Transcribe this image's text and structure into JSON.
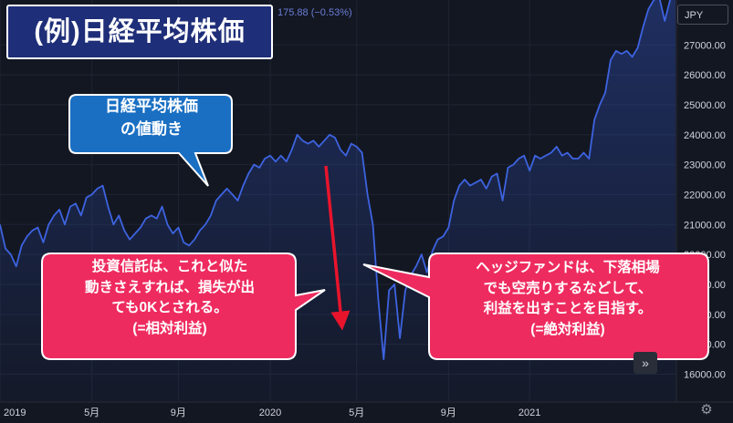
{
  "header": {
    "title": "(例)日経平均株価",
    "change_text": "175.88 (−0.53%)",
    "currency": "JPY"
  },
  "callouts": {
    "price_move": "日経平均株価\nの値動き",
    "investment_trust": "投資信託は、これと似た\n動きさえすれば、損失が出\nても0Kとされる。\n(=相対利益)",
    "hedge_fund": "ヘッジファンドは、下落相場\nでも空売りするなどして、\n利益を出すことを目指す。\n(=絶対利益)"
  },
  "controls": {
    "scroll_right": "»",
    "settings": "⚙"
  },
  "chart_data": {
    "type": "area",
    "x_tick_labels": [
      "2019",
      "5月",
      "9月",
      "2020",
      "5月",
      "9月",
      "2021"
    ],
    "y_tick_labels": [
      "16000.00",
      "17000.00",
      "18000.00",
      "19000.00",
      "20000.00",
      "21000.00",
      "22000.00",
      "23000.00",
      "24000.00",
      "25000.00",
      "26000.00",
      "27000.00"
    ],
    "ylim": [
      15100,
      28500
    ],
    "line_color": "#3d63e0",
    "series": [
      {
        "values": [
          21000,
          20200,
          20000,
          19600,
          20300,
          20600,
          20800,
          20900,
          20400,
          21000,
          21300,
          21500,
          21000,
          21600,
          21700,
          21300,
          21900,
          22000,
          22200,
          22300,
          21600,
          21000,
          21300,
          20800,
          20500,
          20700,
          20900,
          21200,
          21300,
          21200,
          21600,
          21000,
          20700,
          20900,
          20400,
          20300,
          20500,
          20800,
          21000,
          21300,
          21800,
          22000,
          22200,
          22000,
          21800,
          22300,
          22700,
          23000,
          22900,
          23200,
          23300,
          23100,
          23300,
          23100,
          23500,
          24000,
          23800,
          23700,
          23800,
          23600,
          23800,
          24000,
          23900,
          23500,
          23300,
          23700,
          23600,
          23400,
          22000,
          21000,
          18500,
          16500,
          18800,
          19000,
          17200,
          18800,
          19300,
          19600,
          20000,
          19400,
          20100,
          20500,
          20600,
          20900,
          21800,
          22300,
          22500,
          22300,
          22400,
          22500,
          22200,
          22600,
          22700,
          21800,
          22900,
          23000,
          23200,
          23300,
          22800,
          23300,
          23200,
          23300,
          23400,
          23600,
          23300,
          23400,
          23200,
          23200,
          23400,
          23200,
          24500,
          25000,
          25400,
          26500,
          26800,
          26700,
          26800,
          26600,
          26900,
          27600,
          28200,
          28500,
          28600,
          27800,
          28500,
          28700
        ]
      }
    ],
    "grid": true
  }
}
